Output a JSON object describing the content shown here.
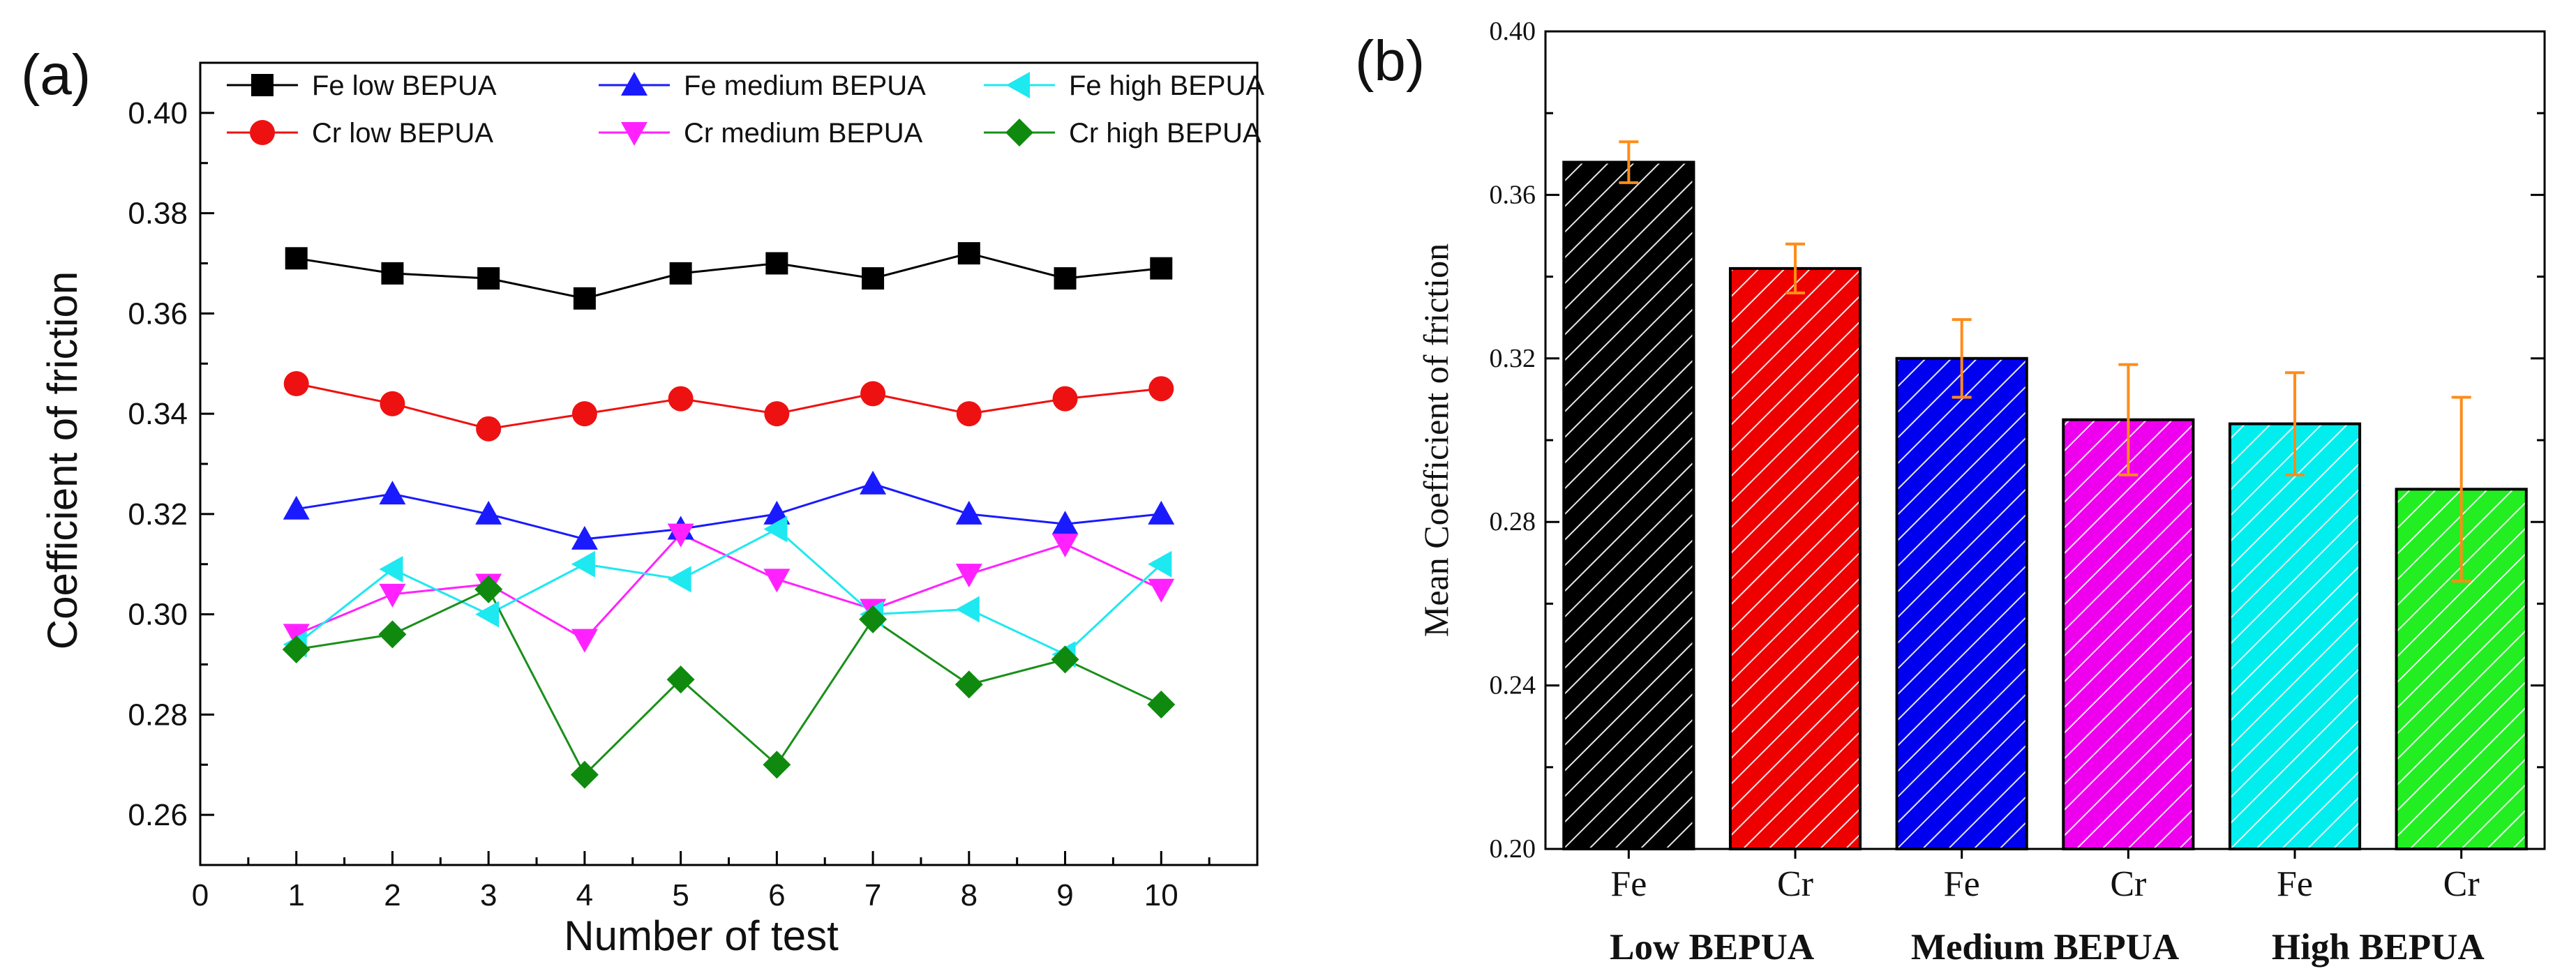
{
  "chart_data": [
    {
      "panel_label": "(a)",
      "type": "line",
      "xlabel": "Number of test",
      "ylabel": "Coefficient of friction",
      "xlim": [
        0,
        11
      ],
      "ylim": [
        0.25,
        0.41
      ],
      "x_ticks": [
        0,
        1,
        2,
        3,
        4,
        5,
        6,
        7,
        8,
        9,
        10
      ],
      "x_tick_labels": [
        "0",
        "1",
        "2",
        "3",
        "4",
        "5",
        "6",
        "7",
        "8",
        "9",
        "10"
      ],
      "y_ticks": [
        0.26,
        0.28,
        0.3,
        0.32,
        0.34,
        0.36,
        0.38,
        0.4
      ],
      "y_tick_labels": [
        "0.26",
        "0.28",
        "0.30",
        "0.32",
        "0.34",
        "0.36",
        "0.38",
        "0.40"
      ],
      "x": [
        1,
        2,
        3,
        4,
        5,
        6,
        7,
        8,
        9,
        10
      ],
      "legend_position": "top",
      "series": [
        {
          "name": "Fe low BEPUA",
          "marker": "square",
          "color": "#000000",
          "line_color": "#000000",
          "values": [
            0.371,
            0.368,
            0.367,
            0.363,
            0.368,
            0.37,
            0.367,
            0.372,
            0.367,
            0.369
          ]
        },
        {
          "name": "Cr low BEPUA",
          "marker": "circle",
          "color": "#ee1111",
          "line_color": "#ee1111",
          "values": [
            0.346,
            0.342,
            0.337,
            0.34,
            0.343,
            0.34,
            0.344,
            0.34,
            0.343,
            0.345
          ]
        },
        {
          "name": "Fe medium BEPUA",
          "marker": "triangle-up",
          "color": "#1a1aff",
          "line_color": "#1a1aff",
          "values": [
            0.321,
            0.324,
            0.32,
            0.315,
            0.317,
            0.32,
            0.326,
            0.32,
            0.318,
            0.32
          ]
        },
        {
          "name": "Cr medium BEPUA",
          "marker": "triangle-down",
          "color": "#ff22ff",
          "line_color": "#ff22ff",
          "values": [
            0.296,
            0.304,
            0.306,
            0.295,
            0.316,
            0.307,
            0.301,
            0.308,
            0.314,
            0.305
          ]
        },
        {
          "name": "Fe high BEPUA",
          "marker": "triangle-left",
          "color": "#1ee8f0",
          "line_color": "#1ee8f0",
          "values": [
            0.294,
            0.309,
            0.3,
            0.31,
            0.307,
            0.317,
            0.3,
            0.301,
            0.292,
            0.31
          ]
        },
        {
          "name": "Cr high BEPUA",
          "marker": "diamond",
          "color": "#0f8a0f",
          "line_color": "#1a8f1a",
          "values": [
            0.293,
            0.296,
            0.305,
            0.268,
            0.287,
            0.27,
            0.299,
            0.286,
            0.291,
            0.282
          ]
        }
      ]
    },
    {
      "panel_label": "(b)",
      "type": "bar",
      "ylabel": "Mean Coefficient of friction",
      "ylim": [
        0.2,
        0.4
      ],
      "y_ticks": [
        0.2,
        0.24,
        0.28,
        0.32,
        0.36,
        0.4
      ],
      "y_tick_labels": [
        "0.20",
        "0.24",
        "0.28",
        "0.32",
        "0.36",
        "0.40"
      ],
      "categories": [
        "Fe",
        "Cr",
        "Fe",
        "Cr",
        "Fe",
        "Cr"
      ],
      "values": [
        0.368,
        0.342,
        0.32,
        0.305,
        0.304,
        0.288
      ],
      "errors": [
        0.005,
        0.006,
        0.0095,
        0.0135,
        0.0125,
        0.0225
      ],
      "bar_colors": [
        "#000000",
        "#ee0000",
        "#0000ee",
        "#ee00ee",
        "#00eeee",
        "#22ee22"
      ],
      "error_color": "#ff8c1a",
      "hatch": "diagonal",
      "groups": [
        "Low BEPUA",
        "Medium BEPUA",
        "High BEPUA"
      ]
    }
  ]
}
